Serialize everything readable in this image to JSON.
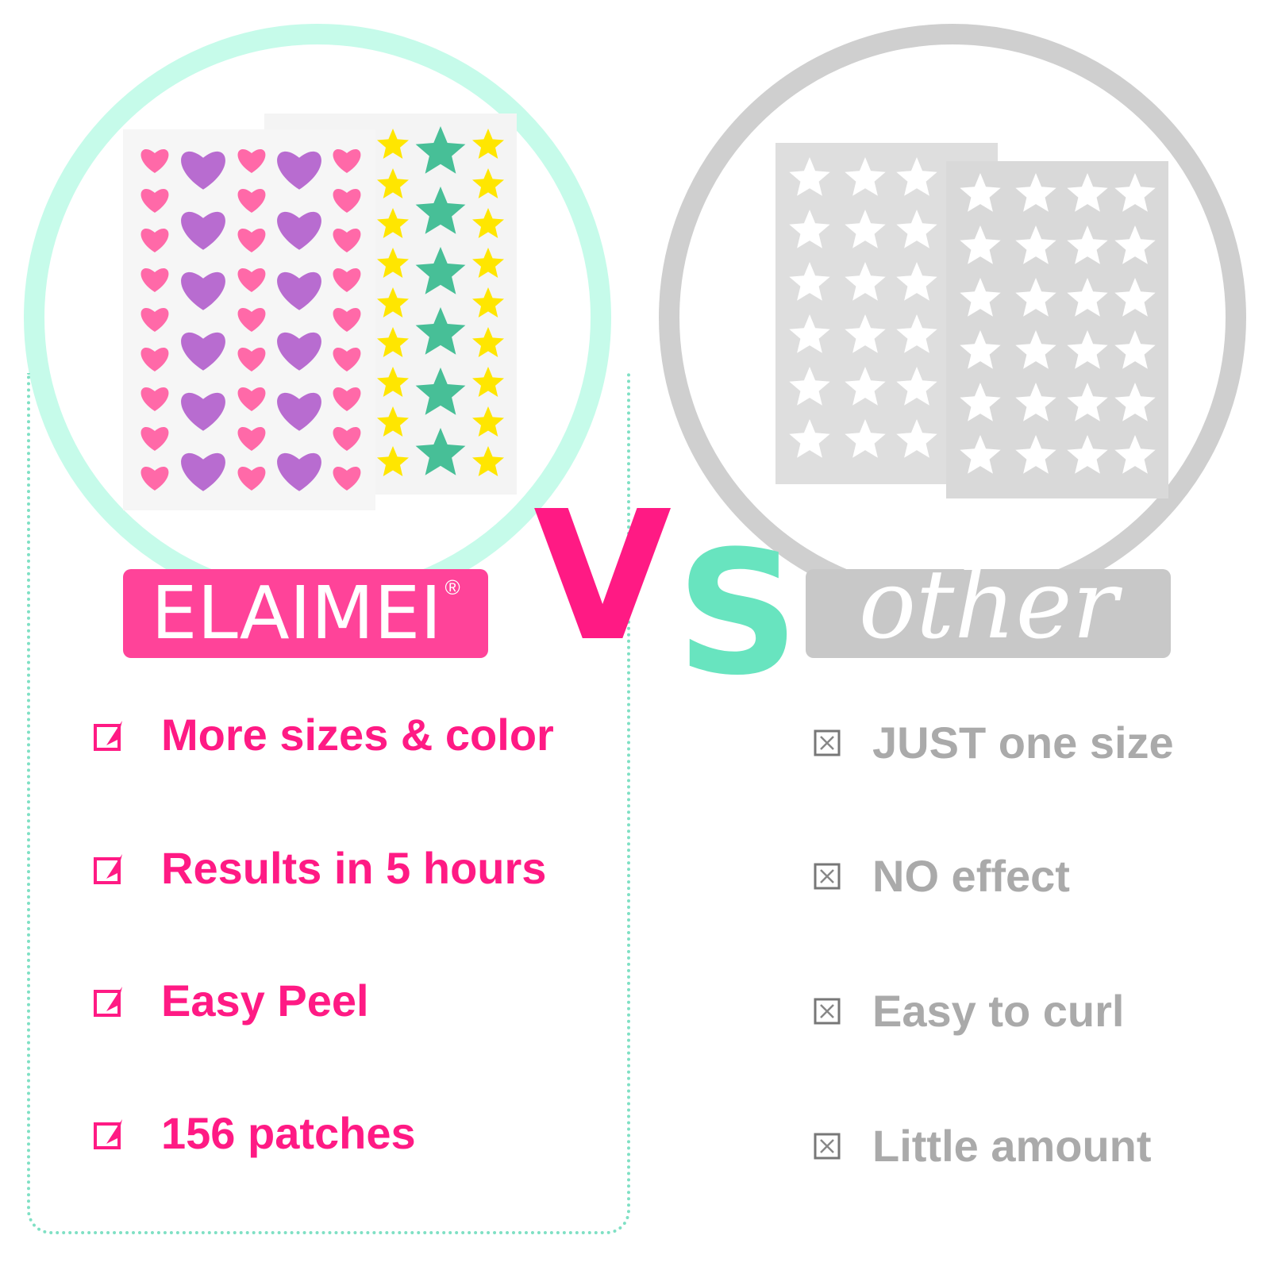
{
  "brand": {
    "name": "ELAIMEI",
    "trademark": "®",
    "color": "#ff4399"
  },
  "competitor": {
    "name": "other",
    "color": "#c8c8c8"
  },
  "vs": {
    "v": "V",
    "s": "S",
    "v_color": "#ff1a84",
    "s_color": "#68e4bf"
  },
  "pros": [
    {
      "label": "More sizes & color",
      "icon": "checkbox-checked-icon"
    },
    {
      "label": "Results in 5 hours",
      "icon": "checkbox-checked-icon"
    },
    {
      "label": "Easy Peel",
      "icon": "checkbox-checked-icon"
    },
    {
      "label": "156 patches",
      "icon": "checkbox-checked-icon"
    }
  ],
  "cons": [
    {
      "label": "JUST one size",
      "icon": "checkbox-x-icon"
    },
    {
      "label": "NO effect",
      "icon": "checkbox-x-icon"
    },
    {
      "label": "Easy to curl",
      "icon": "checkbox-x-icon"
    },
    {
      "label": "Little amount",
      "icon": "checkbox-x-icon"
    }
  ],
  "colors": {
    "heart_pink": "#ff69a8",
    "heart_purple": "#b86cd0",
    "star_yellow": "#ffe600",
    "star_green": "#47bf97"
  }
}
